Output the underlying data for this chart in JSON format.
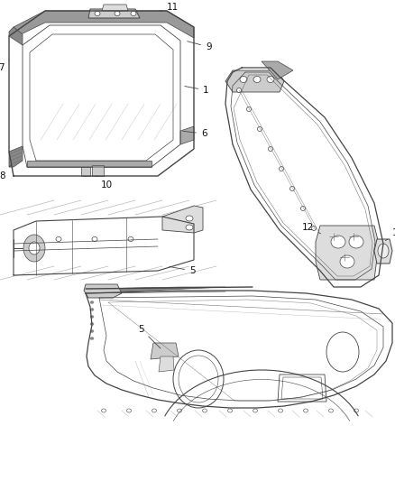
{
  "background_color": "#ffffff",
  "line_color": "#444444",
  "label_color": "#111111",
  "fig_width": 4.38,
  "fig_height": 5.33,
  "dpi": 100
}
